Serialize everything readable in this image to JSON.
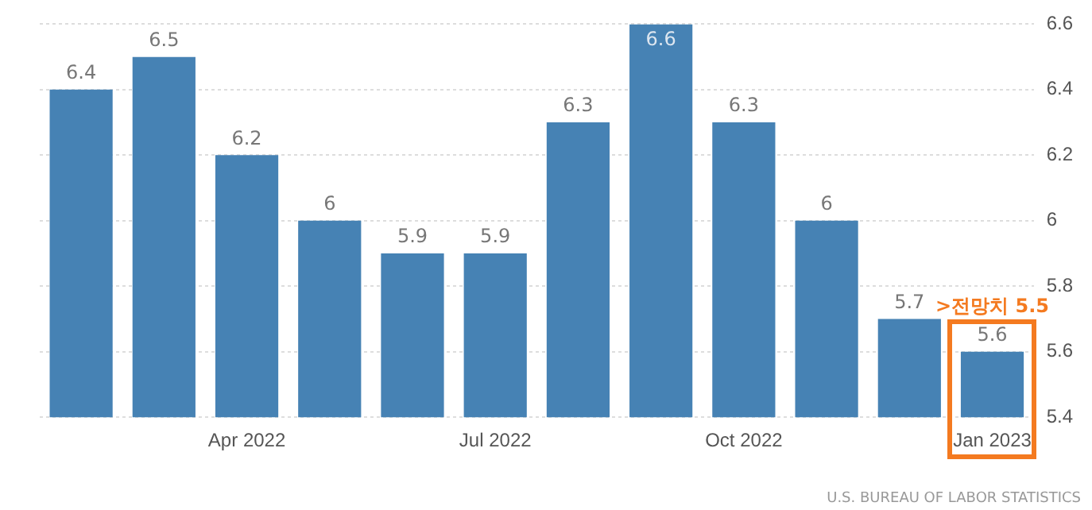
{
  "chart_data": {
    "type": "bar",
    "categories": [
      null,
      null,
      "Apr 2022",
      null,
      null,
      "Jul 2022",
      null,
      null,
      "Oct 2022",
      null,
      null,
      "Jan 2023"
    ],
    "values": [
      6.4,
      6.5,
      6.2,
      6,
      5.9,
      5.9,
      6.3,
      6.6,
      6.3,
      6,
      5.7,
      5.6
    ],
    "color": "#4682b4",
    "ylim": [
      5.4,
      6.6
    ],
    "yticks": [
      5.4,
      5.6,
      5.8,
      6,
      6.2,
      6.4,
      6.6
    ],
    "grid": "y",
    "data_labels": true,
    "legend": false,
    "annotations": [
      ">전망치 5.5",
      "U.S. BUREAU OF LABOR STATISTICS"
    ]
  }
}
